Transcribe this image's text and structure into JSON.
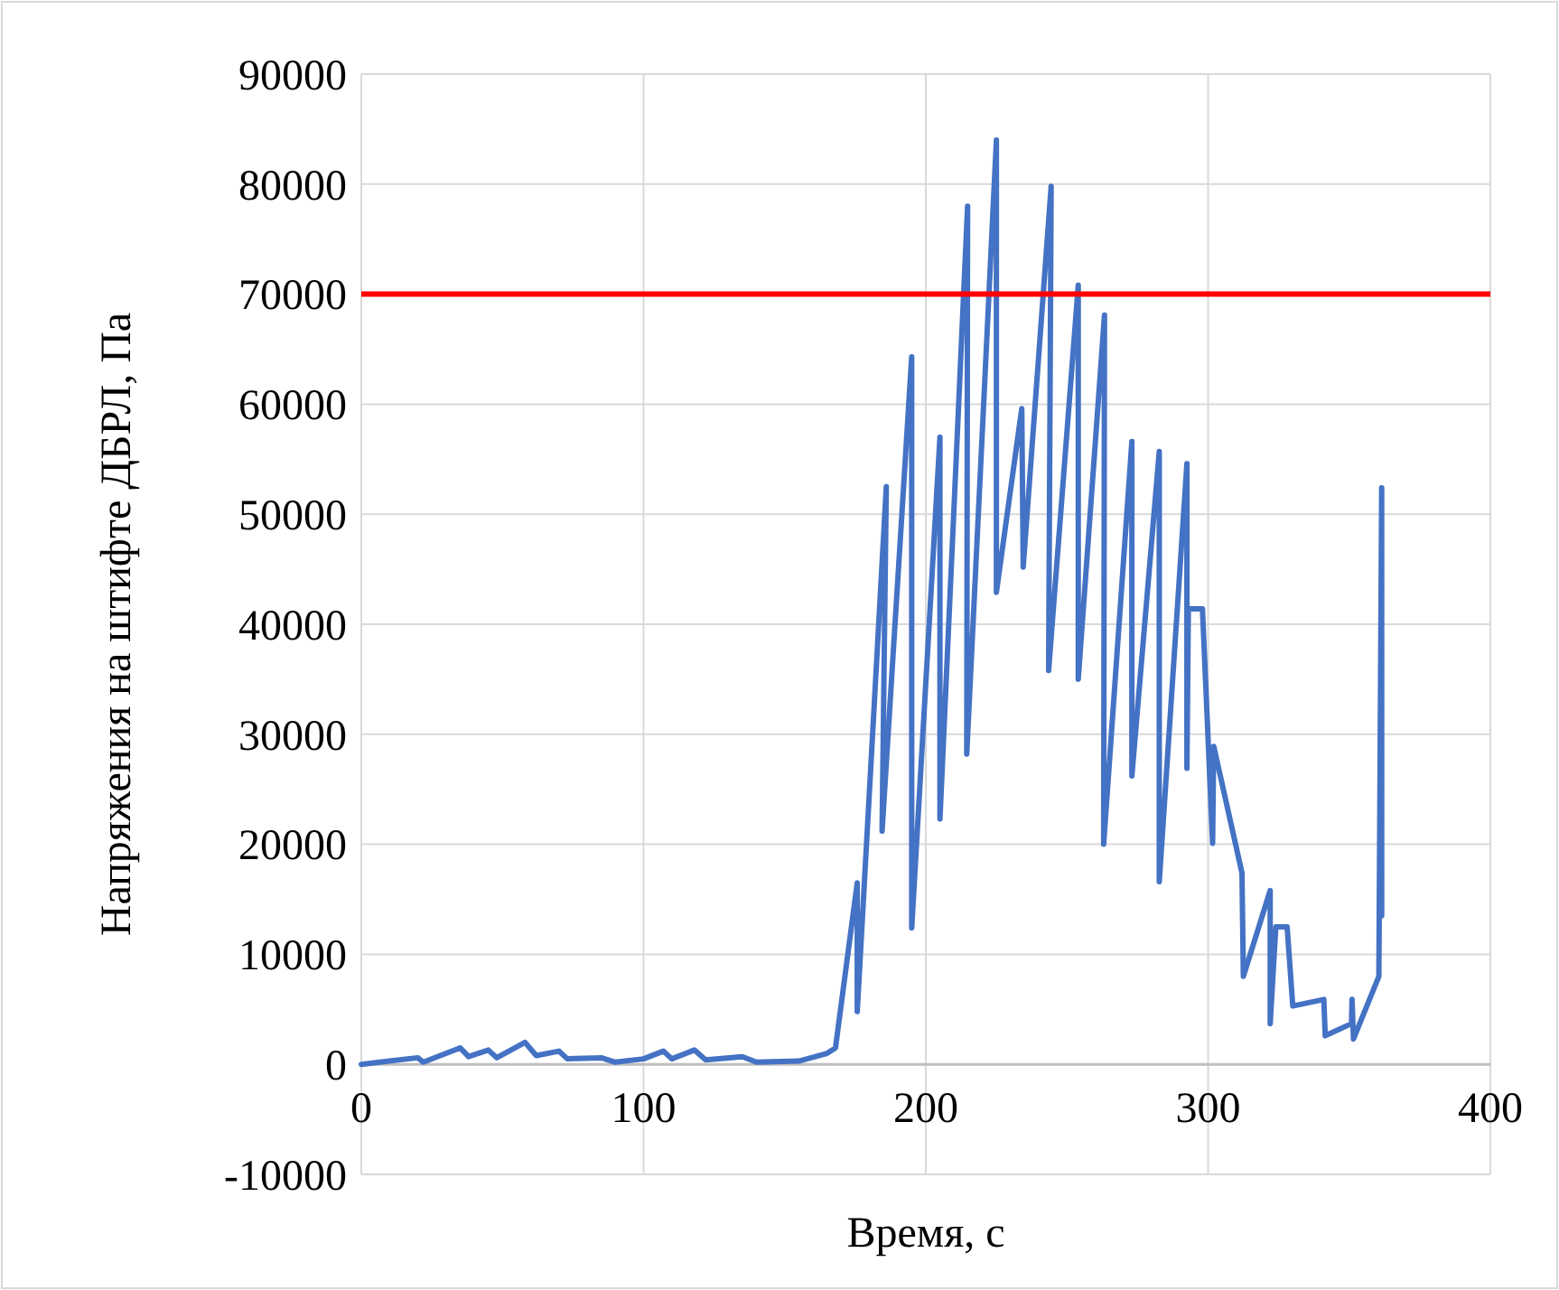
{
  "chart_data": {
    "type": "line",
    "xlabel": "Время, с",
    "ylabel": "Напряжения на штифте ДБРЛ, Па",
    "xlim": [
      0,
      400
    ],
    "xticks": [
      0,
      100,
      200,
      300,
      400
    ],
    "ylim": [
      -10000,
      90000
    ],
    "yticks": [
      -10000,
      0,
      10000,
      20000,
      30000,
      40000,
      50000,
      60000,
      70000,
      80000,
      90000
    ],
    "grid": true,
    "marker": "none",
    "line_style": "solid",
    "ref_lines": [
      {
        "axis": "y",
        "value": 70000,
        "color": "#ff0000"
      }
    ],
    "series": [
      {
        "color": "#4472c4",
        "x": [
          0,
          10,
          20,
          22,
          35,
          38,
          45,
          48,
          58,
          62,
          70,
          73,
          85,
          90,
          100,
          107,
          110,
          118,
          122,
          135,
          140,
          155,
          165,
          168,
          175.7,
          175.7,
          186,
          184.5,
          195,
          195,
          205,
          205,
          214.8,
          214.5,
          225,
          225,
          234,
          234.5,
          244.4,
          243.5,
          254,
          254,
          263.3,
          263,
          273,
          273,
          282.7,
          282.7,
          292.5,
          292.5,
          293,
          298,
          301.6,
          302,
          312,
          312.5,
          322,
          322,
          324,
          328,
          330,
          341,
          341.5,
          350.8,
          351,
          351.5,
          360.5,
          361.5,
          361.5
        ],
        "values": [
          0,
          300,
          600,
          200,
          1500,
          700,
          1300,
          600,
          2000,
          800,
          1200,
          500,
          600,
          200,
          500,
          1200,
          500,
          1300,
          400,
          700,
          200,
          300,
          1000,
          1500,
          16500,
          4800,
          52500,
          21200,
          64300,
          12400,
          57000,
          22300,
          78000,
          28200,
          84000,
          42900,
          59600,
          45200,
          79800,
          35800,
          70800,
          35000,
          68100,
          20000,
          56600,
          26200,
          55700,
          16600,
          54600,
          26900,
          41400,
          41400,
          20100,
          28900,
          17400,
          8000,
          15800,
          3700,
          12500,
          12500,
          5300,
          5900,
          2600,
          3700,
          5900,
          2300,
          8000,
          52400,
          13500
        ]
      }
    ]
  }
}
